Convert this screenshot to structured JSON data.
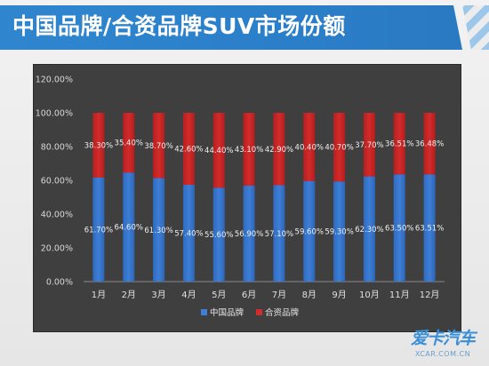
{
  "header": {
    "title": "中国品牌/合资品牌SUV市场份额"
  },
  "watermark": {
    "logo_text": "爱卡汽车",
    "url_text": "XCAR.COM.CN"
  },
  "colors": {
    "domestic": "#3d7fd6",
    "jv": "#d22b2b",
    "panel": "#3f3f3f",
    "banner": "#2f86cf"
  },
  "chart_data": {
    "type": "bar",
    "stacked": true,
    "categories": [
      "1月",
      "2月",
      "3月",
      "4月",
      "5月",
      "6月",
      "7月",
      "8月",
      "9月",
      "10月",
      "11月",
      "12月"
    ],
    "series": [
      {
        "name": "中国品牌",
        "values": [
          61.7,
          64.6,
          61.3,
          57.4,
          55.6,
          56.9,
          57.1,
          59.6,
          59.3,
          62.3,
          63.5,
          63.51
        ],
        "labels": [
          "61.70%",
          "64.60%",
          "61.30%",
          "57.40%",
          "55.60%",
          "56.90%",
          "57.10%",
          "59.60%",
          "59.30%",
          "62.30%",
          "63.50%",
          "63.51%"
        ]
      },
      {
        "name": "合资品牌",
        "values": [
          38.3,
          35.4,
          38.7,
          42.6,
          44.4,
          43.1,
          42.9,
          40.4,
          40.7,
          37.7,
          36.51,
          36.48
        ],
        "labels": [
          "38.30%",
          "35.40%",
          "38.70%",
          "42.60%",
          "44.40%",
          "43.10%",
          "42.90%",
          "40.40%",
          "40.70%",
          "37.70%",
          "36.51%",
          "36.48%"
        ]
      }
    ],
    "ylim": [
      0,
      120
    ],
    "yticks": [
      "0.00%",
      "20.00%",
      "40.00%",
      "60.00%",
      "80.00%",
      "100.00%",
      "120.00%"
    ],
    "legend_position": "bottom",
    "grid": false
  }
}
